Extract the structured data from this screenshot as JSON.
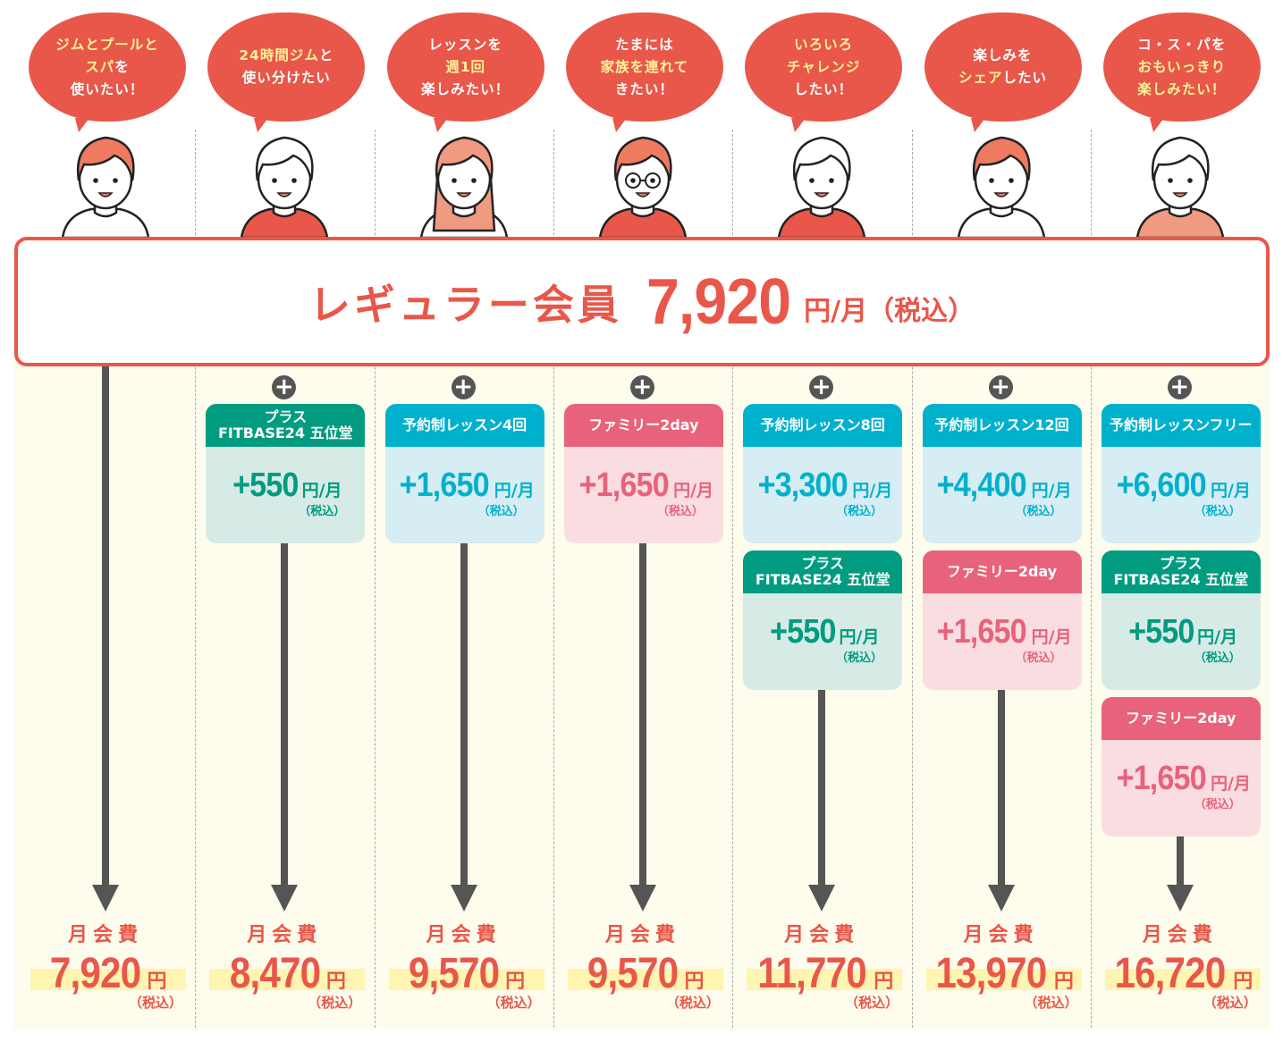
{
  "banner": {
    "label": "レギュラー会員",
    "price": "7,920",
    "unit": "円/月（税込）"
  },
  "total_label": "月会費",
  "tax_label": "（税込）",
  "plus_icon": "plus-circle-icon",
  "colors": {
    "red": "#e8574a",
    "green": "#009b80",
    "cyan": "#00b1cd",
    "pink": "#e8627b",
    "highlight": "#fff39a"
  },
  "columns": [
    {
      "bubble": [
        [
          [
            "ジムとプールと",
            true
          ]
        ],
        [
          [
            "スパ",
            true
          ],
          [
            "を",
            false
          ]
        ],
        [
          [
            "使いたい！",
            false
          ]
        ]
      ],
      "person": {
        "hair": "#ee7a60",
        "shirt": "#ffffff",
        "long": false
      },
      "cards": [],
      "total": {
        "amount": "7,920",
        "unit": "円"
      }
    },
    {
      "bubble": [
        [
          [
            "24時間ジム",
            true
          ],
          [
            "と",
            false
          ]
        ],
        [
          [
            "使い分けたい",
            false
          ]
        ]
      ],
      "person": {
        "hair": "#ffffff",
        "shirt": "#e8574a",
        "long": false
      },
      "cards": [
        {
          "type": "green",
          "title": [
            "プラス",
            "FITBASE24 五位堂"
          ],
          "amount": "+550",
          "unit": "円/月"
        }
      ],
      "total": {
        "amount": "8,470",
        "unit": "円"
      }
    },
    {
      "bubble": [
        [
          [
            "レッスンを",
            false
          ]
        ],
        [
          [
            "週1回",
            true
          ]
        ],
        [
          [
            "楽しみたい！",
            false
          ]
        ]
      ],
      "person": {
        "hair": "#f09a82",
        "shirt": "#ffffff",
        "long": true
      },
      "cards": [
        {
          "type": "cyan",
          "title": [
            "予約制レッスン4回"
          ],
          "amount": "+1,650",
          "unit": "円/月"
        }
      ],
      "total": {
        "amount": "9,570",
        "unit": "円"
      }
    },
    {
      "bubble": [
        [
          [
            "たまには",
            false
          ]
        ],
        [
          [
            "家族を連れて",
            true
          ]
        ],
        [
          [
            "きたい！",
            false
          ]
        ]
      ],
      "person": {
        "hair": "#ee7a60",
        "shirt": "#e8574a",
        "long": false,
        "glasses": true
      },
      "cards": [
        {
          "type": "pink",
          "title": [
            "ファミリー2day"
          ],
          "amount": "+1,650",
          "unit": "円/月"
        }
      ],
      "total": {
        "amount": "9,570",
        "unit": "円"
      }
    },
    {
      "bubble": [
        [
          [
            "いろいろ",
            true
          ]
        ],
        [
          [
            "チャレンジ",
            true
          ]
        ],
        [
          [
            "したい！",
            false
          ]
        ]
      ],
      "person": {
        "hair": "#ffffff",
        "shirt": "#e8574a",
        "long": false
      },
      "cards": [
        {
          "type": "cyan",
          "title": [
            "予約制レッスン8回"
          ],
          "amount": "+3,300",
          "unit": "円/月"
        },
        {
          "type": "green",
          "title": [
            "プラス",
            "FITBASE24 五位堂"
          ],
          "amount": "+550",
          "unit": "円/月"
        }
      ],
      "total": {
        "amount": "11,770",
        "unit": "円"
      }
    },
    {
      "bubble": [
        [
          [
            "楽しみを",
            false
          ]
        ],
        [
          [
            "シェア",
            true
          ],
          [
            "したい",
            false
          ]
        ]
      ],
      "person": {
        "hair": "#ee7a60",
        "shirt": "#ffffff",
        "long": false
      },
      "cards": [
        {
          "type": "cyan",
          "title": [
            "予約制レッスン12回"
          ],
          "amount": "+4,400",
          "unit": "円/月"
        },
        {
          "type": "pink",
          "title": [
            "ファミリー2day"
          ],
          "amount": "+1,650",
          "unit": "円/月"
        }
      ],
      "total": {
        "amount": "13,970",
        "unit": "円"
      }
    },
    {
      "bubble": [
        [
          [
            "コ・ス・パを",
            false
          ]
        ],
        [
          [
            "おもいっきり",
            true
          ]
        ],
        [
          [
            "楽しみたい！",
            true
          ]
        ]
      ],
      "person": {
        "hair": "#ffffff",
        "shirt": "#f09a82",
        "long": false
      },
      "cards": [
        {
          "type": "cyan",
          "title": [
            "予約制レッスンフリー"
          ],
          "amount": "+6,600",
          "unit": "円/月"
        },
        {
          "type": "green",
          "title": [
            "プラス",
            "FITBASE24 五位堂"
          ],
          "amount": "+550",
          "unit": "円/月"
        },
        {
          "type": "pink",
          "title": [
            "ファミリー2day"
          ],
          "amount": "+1,650",
          "unit": "円/月"
        }
      ],
      "total": {
        "amount": "16,720",
        "unit": "円"
      }
    }
  ]
}
